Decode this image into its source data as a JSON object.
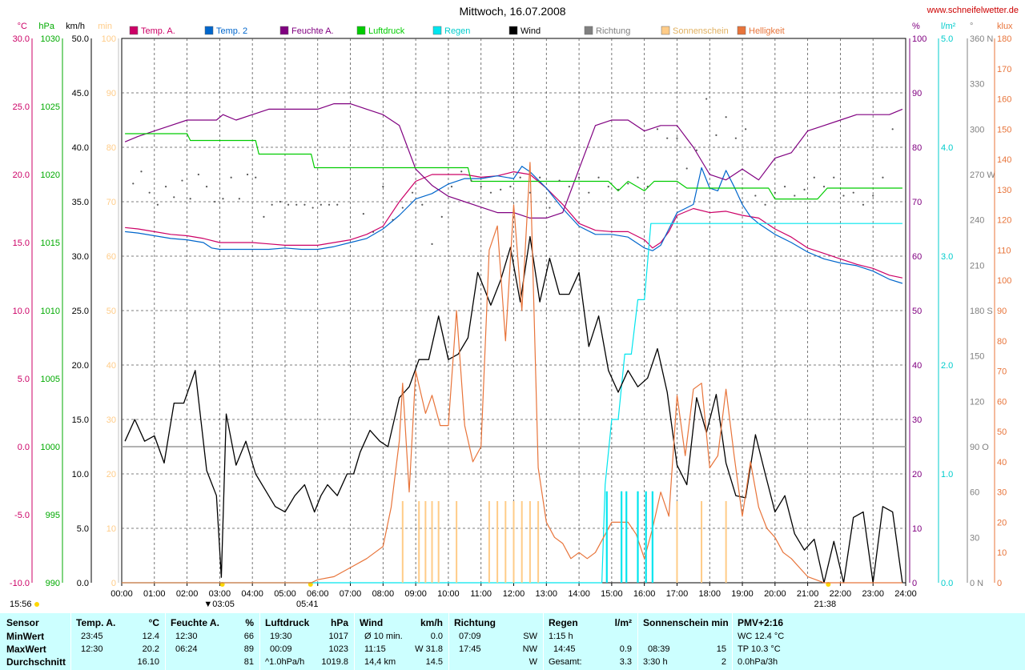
{
  "page": {
    "title": "Mittwoch, 16.07.2008",
    "site": "www.schneifelwetter.de",
    "sunrise": "05:41",
    "sunset": "21:38",
    "moonrise": "15:56",
    "moonset": "03:05"
  },
  "colors": {
    "temp_a": "#cc0066",
    "temp_2": "#0066cc",
    "feuchte": "#800080",
    "luftdruck": "#00cc00",
    "regen": "#00e5ee",
    "wind": "#000000",
    "richtung": "#808080",
    "sonnenschein": "#ffcc88",
    "helligkeit": "#e8743a"
  },
  "legend": [
    {
      "label": "Temp. A.",
      "color": "#cc0066"
    },
    {
      "label": "Temp. 2",
      "color": "#0066cc"
    },
    {
      "label": "Feuchte A.",
      "color": "#800080"
    },
    {
      "label": "Luftdruck",
      "color": "#00cc00"
    },
    {
      "label": "Regen",
      "color": "#00e5ee"
    },
    {
      "label": "Wind",
      "color": "#000000"
    },
    {
      "label": "Richtung",
      "color": "#808080"
    },
    {
      "label": "Sonnenschein",
      "color": "#ffcc88"
    },
    {
      "label": "Helligkeit",
      "color": "#e8743a"
    }
  ],
  "chart_data": {
    "type": "line",
    "title": "Mittwoch, 16.07.2008",
    "x_ticks": [
      "00:00",
      "01:00",
      "02:00",
      "03:00",
      "04:00",
      "05:00",
      "06:00",
      "07:00",
      "08:00",
      "09:00",
      "10:00",
      "11:00",
      "12:00",
      "13:00",
      "14:00",
      "15:00",
      "16:00",
      "17:00",
      "18:00",
      "19:00",
      "20:00",
      "21:00",
      "22:00",
      "23:00",
      "24:00"
    ],
    "xlim": [
      0,
      24
    ],
    "left_axes": [
      {
        "unit": "°C",
        "color": "#cc0066",
        "ticks": [
          "30.0",
          "25.0",
          "20.0",
          "15.0",
          "10.0",
          "5.0",
          "0.0",
          "-5.0",
          "-10.0"
        ],
        "lim": [
          -10,
          30
        ]
      },
      {
        "unit": "hPa",
        "color": "#00aa00",
        "ticks": [
          "1030",
          "1025",
          "1020",
          "1015",
          "1010",
          "1005",
          "1000",
          "995",
          "990"
        ],
        "lim": [
          990,
          1030
        ]
      },
      {
        "unit": "km/h",
        "color": "#000000",
        "ticks": [
          "50.0",
          "45.0",
          "40.0",
          "35.0",
          "30.0",
          "25.0",
          "20.0",
          "15.0",
          "10.0",
          "5.0",
          "0.0"
        ],
        "lim": [
          0,
          50
        ]
      },
      {
        "unit": "min",
        "color": "#ffcc88",
        "ticks": [
          "100",
          "90",
          "80",
          "70",
          "60",
          "50",
          "40",
          "30",
          "20",
          "10",
          "0"
        ],
        "lim": [
          0,
          100
        ]
      }
    ],
    "right_axes": [
      {
        "unit": "%",
        "color": "#800080",
        "ticks": [
          "100",
          "90",
          "80",
          "70",
          "60",
          "50",
          "40",
          "30",
          "20",
          "10",
          "0"
        ],
        "lim": [
          0,
          100
        ]
      },
      {
        "unit": "l/m²",
        "color": "#00cccc",
        "ticks": [
          "5.0",
          "4.0",
          "3.0",
          "2.0",
          "1.0",
          "0.0"
        ],
        "lim": [
          0,
          5
        ]
      },
      {
        "unit": "°",
        "color": "#808080",
        "ticks": [
          "360 N",
          "330",
          "300",
          "270 W",
          "240",
          "210",
          "180 S",
          "150",
          "120",
          "90 O",
          "60",
          "30",
          "0 N"
        ],
        "lim": [
          0,
          360
        ]
      },
      {
        "unit": "klux",
        "color": "#e8743a",
        "ticks": [
          "180",
          "170",
          "160",
          "150",
          "140",
          "130",
          "120",
          "110",
          "100",
          "90",
          "80",
          "70",
          "60",
          "50",
          "40",
          "30",
          "20",
          "10",
          "0"
        ],
        "lim": [
          0,
          180
        ]
      }
    ],
    "series": [
      {
        "name": "Temp. A.",
        "axis": "°C",
        "color": "#cc0066",
        "x": [
          0.1,
          0.5,
          1,
          1.5,
          2,
          2.5,
          3,
          3.5,
          4,
          4.5,
          5,
          5.5,
          6,
          6.5,
          7,
          7.5,
          8,
          8.5,
          9,
          9.5,
          10,
          10.5,
          11,
          11.5,
          12,
          12.5,
          13,
          13.5,
          14,
          14.5,
          15,
          15.5,
          16,
          16.25,
          16.5,
          16.75,
          17,
          17.5,
          18,
          18.5,
          19,
          19.5,
          20,
          20.5,
          21,
          21.5,
          22,
          22.5,
          23,
          23.5,
          23.9
        ],
        "y": [
          16.1,
          16.0,
          15.8,
          15.6,
          15.5,
          15.3,
          15.0,
          15.0,
          15.0,
          14.9,
          14.8,
          14.8,
          14.8,
          15.0,
          15.2,
          15.6,
          16.2,
          18.0,
          19.5,
          20.0,
          20.0,
          20.0,
          19.8,
          19.9,
          20.2,
          20.0,
          19.0,
          17.8,
          16.4,
          15.9,
          15.8,
          15.8,
          15.2,
          14.6,
          15.0,
          15.8,
          17.0,
          17.5,
          17.2,
          17.3,
          17.0,
          16.8,
          16.0,
          15.4,
          14.6,
          14.2,
          13.8,
          13.4,
          13.1,
          12.6,
          12.4
        ]
      },
      {
        "name": "Temp. 2",
        "axis": "°C",
        "color": "#0066cc",
        "x": [
          0.1,
          0.5,
          1,
          1.5,
          2,
          2.5,
          2.75,
          3,
          3.5,
          4,
          4.5,
          5,
          5.5,
          6,
          6.5,
          7,
          7.5,
          8,
          8.5,
          9,
          9.5,
          10,
          10.5,
          11,
          11.5,
          12,
          12.25,
          12.5,
          13,
          13.5,
          14,
          14.5,
          15,
          15.5,
          16,
          16.25,
          16.5,
          16.75,
          17,
          17.5,
          17.75,
          18,
          18.25,
          18.5,
          18.75,
          19,
          19.25,
          19.5,
          20,
          20.5,
          21,
          21.5,
          22,
          22.5,
          23,
          23.5,
          23.9
        ],
        "y": [
          15.8,
          15.7,
          15.5,
          15.3,
          15.2,
          15.0,
          14.6,
          14.5,
          14.5,
          14.5,
          14.5,
          14.6,
          14.5,
          14.5,
          14.7,
          15.0,
          15.3,
          16.0,
          17.0,
          18.2,
          18.6,
          19.3,
          19.7,
          19.7,
          19.9,
          19.7,
          20.6,
          20.2,
          19.0,
          17.5,
          16.2,
          15.6,
          15.6,
          15.4,
          14.6,
          14.4,
          14.8,
          16.0,
          17.2,
          17.8,
          20.5,
          19.0,
          18.8,
          20.3,
          19.1,
          17.8,
          16.9,
          16.4,
          15.6,
          15.0,
          14.3,
          13.8,
          13.5,
          13.3,
          12.9,
          12.3,
          12.0
        ]
      },
      {
        "name": "Feuchte A.",
        "axis": "%",
        "color": "#800080",
        "x": [
          0.1,
          0.5,
          1,
          1.5,
          2,
          2.5,
          2.9,
          3.1,
          3.5,
          4,
          4.5,
          5,
          5.5,
          6,
          6.5,
          7,
          7.5,
          8,
          8.5,
          9,
          9.5,
          10,
          10.5,
          11,
          11.5,
          12,
          12.5,
          13,
          13.5,
          14,
          14.5,
          15,
          15.5,
          16,
          16.5,
          17,
          17.5,
          18,
          18.5,
          19,
          19.5,
          20,
          20.5,
          21,
          21.5,
          22,
          22.5,
          23,
          23.5,
          23.9
        ],
        "y": [
          81,
          82,
          83,
          84,
          85,
          85,
          85,
          86,
          85,
          86,
          87,
          87,
          87,
          87,
          88,
          88,
          87,
          86,
          84,
          76,
          73,
          71,
          70,
          69,
          68,
          68,
          67,
          67,
          68,
          76,
          84,
          85,
          85,
          83,
          84,
          84,
          80,
          75,
          74,
          76,
          74,
          78,
          79,
          83,
          84,
          85,
          86,
          86,
          86,
          87
        ]
      },
      {
        "name": "Luftdruck",
        "axis": "hPa",
        "color": "#00cc00",
        "x": [
          0.1,
          2.0,
          2.1,
          4.1,
          4.2,
          5.8,
          5.9,
          10.6,
          10.7,
          14.9,
          15.2,
          15.5,
          16.0,
          16.3,
          16.7,
          17.0,
          17.3,
          19.8,
          20.0,
          20.3,
          20.5,
          21.3,
          21.6,
          23.9
        ],
        "y": [
          1023,
          1023,
          1022.5,
          1022.5,
          1021.5,
          1021.5,
          1020.5,
          1020.5,
          1019.5,
          1019.5,
          1018.8,
          1019.5,
          1018.8,
          1019.5,
          1019.5,
          1019.5,
          1019.0,
          1019.0,
          1018.2,
          1018.2,
          1018.2,
          1018.2,
          1019.0,
          1019.0
        ]
      },
      {
        "name": "Regen",
        "axis": "l/m²",
        "color": "#00e5ee",
        "x": [
          0,
          14.7,
          14.8,
          15.0,
          15.2,
          15.4,
          15.6,
          15.8,
          16.0,
          16.2,
          16.5,
          16.8,
          23.9
        ],
        "y": [
          0,
          0,
          0.9,
          1.5,
          1.5,
          2.1,
          2.1,
          2.6,
          2.6,
          3.3,
          3.3,
          3.3,
          3.3
        ]
      },
      {
        "name": "Wind",
        "axis": "km/h",
        "color": "#000000",
        "x": [
          0.1,
          0.4,
          0.7,
          1,
          1.3,
          1.6,
          1.9,
          2.25,
          2.6,
          2.9,
          3.05,
          3.2,
          3.5,
          3.8,
          4.1,
          4.4,
          4.7,
          5.0,
          5.3,
          5.6,
          5.9,
          6.1,
          6.3,
          6.6,
          6.9,
          7.1,
          7.3,
          7.6,
          7.9,
          8.15,
          8.5,
          8.8,
          9.1,
          9.4,
          9.7,
          10.0,
          10.3,
          10.6,
          10.9,
          11.1,
          11.3,
          11.6,
          11.9,
          12.2,
          12.5,
          12.8,
          13.1,
          13.4,
          13.7,
          14.0,
          14.3,
          14.6,
          14.9,
          15.2,
          15.5,
          15.8,
          16.1,
          16.4,
          16.7,
          17.0,
          17.3,
          17.6,
          17.9,
          18.2,
          18.5,
          18.8,
          19.1,
          19.4,
          19.7,
          20.0,
          20.3,
          20.6,
          20.9,
          21.2,
          21.5,
          21.8,
          22.1,
          22.4,
          22.7,
          23.0,
          23.3,
          23.6,
          23.9
        ],
        "y": [
          13,
          15,
          13,
          13.5,
          11,
          16.5,
          16.5,
          19.5,
          10.3,
          8,
          0.5,
          15.5,
          10.8,
          13,
          10,
          8.5,
          7,
          6.5,
          8,
          9,
          6.5,
          8,
          9,
          8,
          10,
          10,
          12,
          14,
          13,
          12.5,
          17,
          18,
          20.5,
          20.5,
          24.5,
          20.5,
          21,
          22.5,
          28.5,
          27,
          25.5,
          27.8,
          30.8,
          25.8,
          31.8,
          25.8,
          29.8,
          26.5,
          26.5,
          28.5,
          21.7,
          24.5,
          19.5,
          17.5,
          19.5,
          18,
          18.8,
          21.5,
          17.5,
          10.8,
          9,
          17,
          13.8,
          17.3,
          11,
          8,
          7.8,
          13.6,
          10,
          6.5,
          8,
          4.5,
          3,
          4,
          0,
          3.8,
          0,
          6,
          6.5,
          0,
          7,
          6.5,
          0
        ]
      },
      {
        "name": "Sonnenschein",
        "axis": "min",
        "color": "#ffcc88",
        "x": [
          8.6,
          9.1,
          9.3,
          9.5,
          9.7,
          10.25,
          11.25,
          11.5,
          11.75,
          12.0,
          12.25,
          12.5,
          12.75,
          17.0,
          17.75,
          18.5
        ],
        "y": [
          15,
          15,
          15,
          15,
          15,
          15,
          15,
          15,
          15,
          15,
          15,
          15,
          15,
          15,
          15,
          15
        ]
      },
      {
        "name": "Helligkeit",
        "axis": "klux",
        "color": "#e8743a",
        "x": [
          0,
          5.8,
          6.0,
          6.5,
          7.0,
          7.5,
          8.0,
          8.25,
          8.5,
          8.6,
          8.8,
          9.0,
          9.3,
          9.5,
          9.75,
          10.0,
          10.25,
          10.5,
          10.75,
          11.0,
          11.25,
          11.5,
          11.75,
          12.0,
          12.25,
          12.5,
          12.75,
          13.0,
          13.25,
          13.5,
          13.75,
          14.0,
          14.25,
          14.5,
          14.75,
          15.0,
          15.25,
          15.5,
          15.75,
          16.0,
          16.25,
          16.5,
          16.75,
          17.0,
          17.25,
          17.5,
          17.75,
          18.0,
          18.25,
          18.5,
          18.75,
          19.0,
          19.25,
          19.5,
          19.75,
          20.0,
          20.25,
          20.5,
          20.75,
          21.0,
          21.25,
          21.5,
          22.0,
          23.9
        ],
        "y": [
          0,
          0,
          1,
          2,
          5,
          8,
          12,
          25,
          47,
          66,
          30,
          70,
          56,
          62,
          52,
          52,
          90,
          52,
          40,
          45,
          110,
          118,
          80,
          125,
          90,
          139,
          38,
          20,
          15,
          13,
          8,
          10,
          8,
          10,
          15,
          20,
          20,
          20,
          16,
          8,
          18,
          30,
          22,
          62,
          42,
          64,
          66,
          38,
          42,
          64,
          42,
          22,
          40,
          25,
          18,
          15,
          10,
          8,
          5,
          2,
          1,
          0,
          0,
          0
        ]
      }
    ]
  },
  "footer": {
    "sensor": {
      "title": "Sensor",
      "rows": [
        "MinWert",
        "MaxWert",
        "Durchschnitt"
      ]
    },
    "temp": {
      "title": "Temp. A.",
      "unit": "°C",
      "r1": [
        "23:45",
        "12.4"
      ],
      "r2": [
        "12:30",
        "20.2"
      ],
      "r3": [
        "",
        "16.10"
      ]
    },
    "feuchte": {
      "title": "Feuchte A.",
      "unit": "%",
      "r1": [
        "12:30",
        "66"
      ],
      "r2": [
        "06:24",
        "89"
      ],
      "r3": [
        "",
        "81"
      ]
    },
    "druck": {
      "title": "Luftdruck",
      "unit": "hPa",
      "r1": [
        "19:30",
        "1017"
      ],
      "r2": [
        "00:09",
        "1023"
      ],
      "r3": [
        "^1.0hPa/h",
        "1019.8"
      ]
    },
    "wind": {
      "title": "Wind",
      "unit": "km/h",
      "r1": [
        "Ø 10 min.",
        "0.0"
      ],
      "r2": [
        "11:15",
        "W 31.8"
      ],
      "r3": [
        "14,4 km",
        "14.5"
      ]
    },
    "richtung": {
      "title": "Richtung",
      "r1": [
        "07:09",
        "SW"
      ],
      "r2": [
        "17:45",
        "NW"
      ],
      "r3": [
        "",
        "W"
      ]
    },
    "regen": {
      "title": "Regen",
      "unit": "l/m²",
      "r1": [
        "1:15 h",
        ""
      ],
      "r2": [
        "14:45",
        "0.9"
      ],
      "r3": [
        "Gesamt:",
        "3.3"
      ]
    },
    "sonne": {
      "title": "Sonnenschein min",
      "r1": [
        "",
        ""
      ],
      "r2": [
        "08:39",
        "15"
      ],
      "r3": [
        "3:30 h",
        "2"
      ]
    },
    "pmv": {
      "title": "PMV+2:16",
      "r1": "WC 12.4 °C",
      "r2": "TP 10.3 °C",
      "r3": "0.0hPa/3h"
    }
  }
}
